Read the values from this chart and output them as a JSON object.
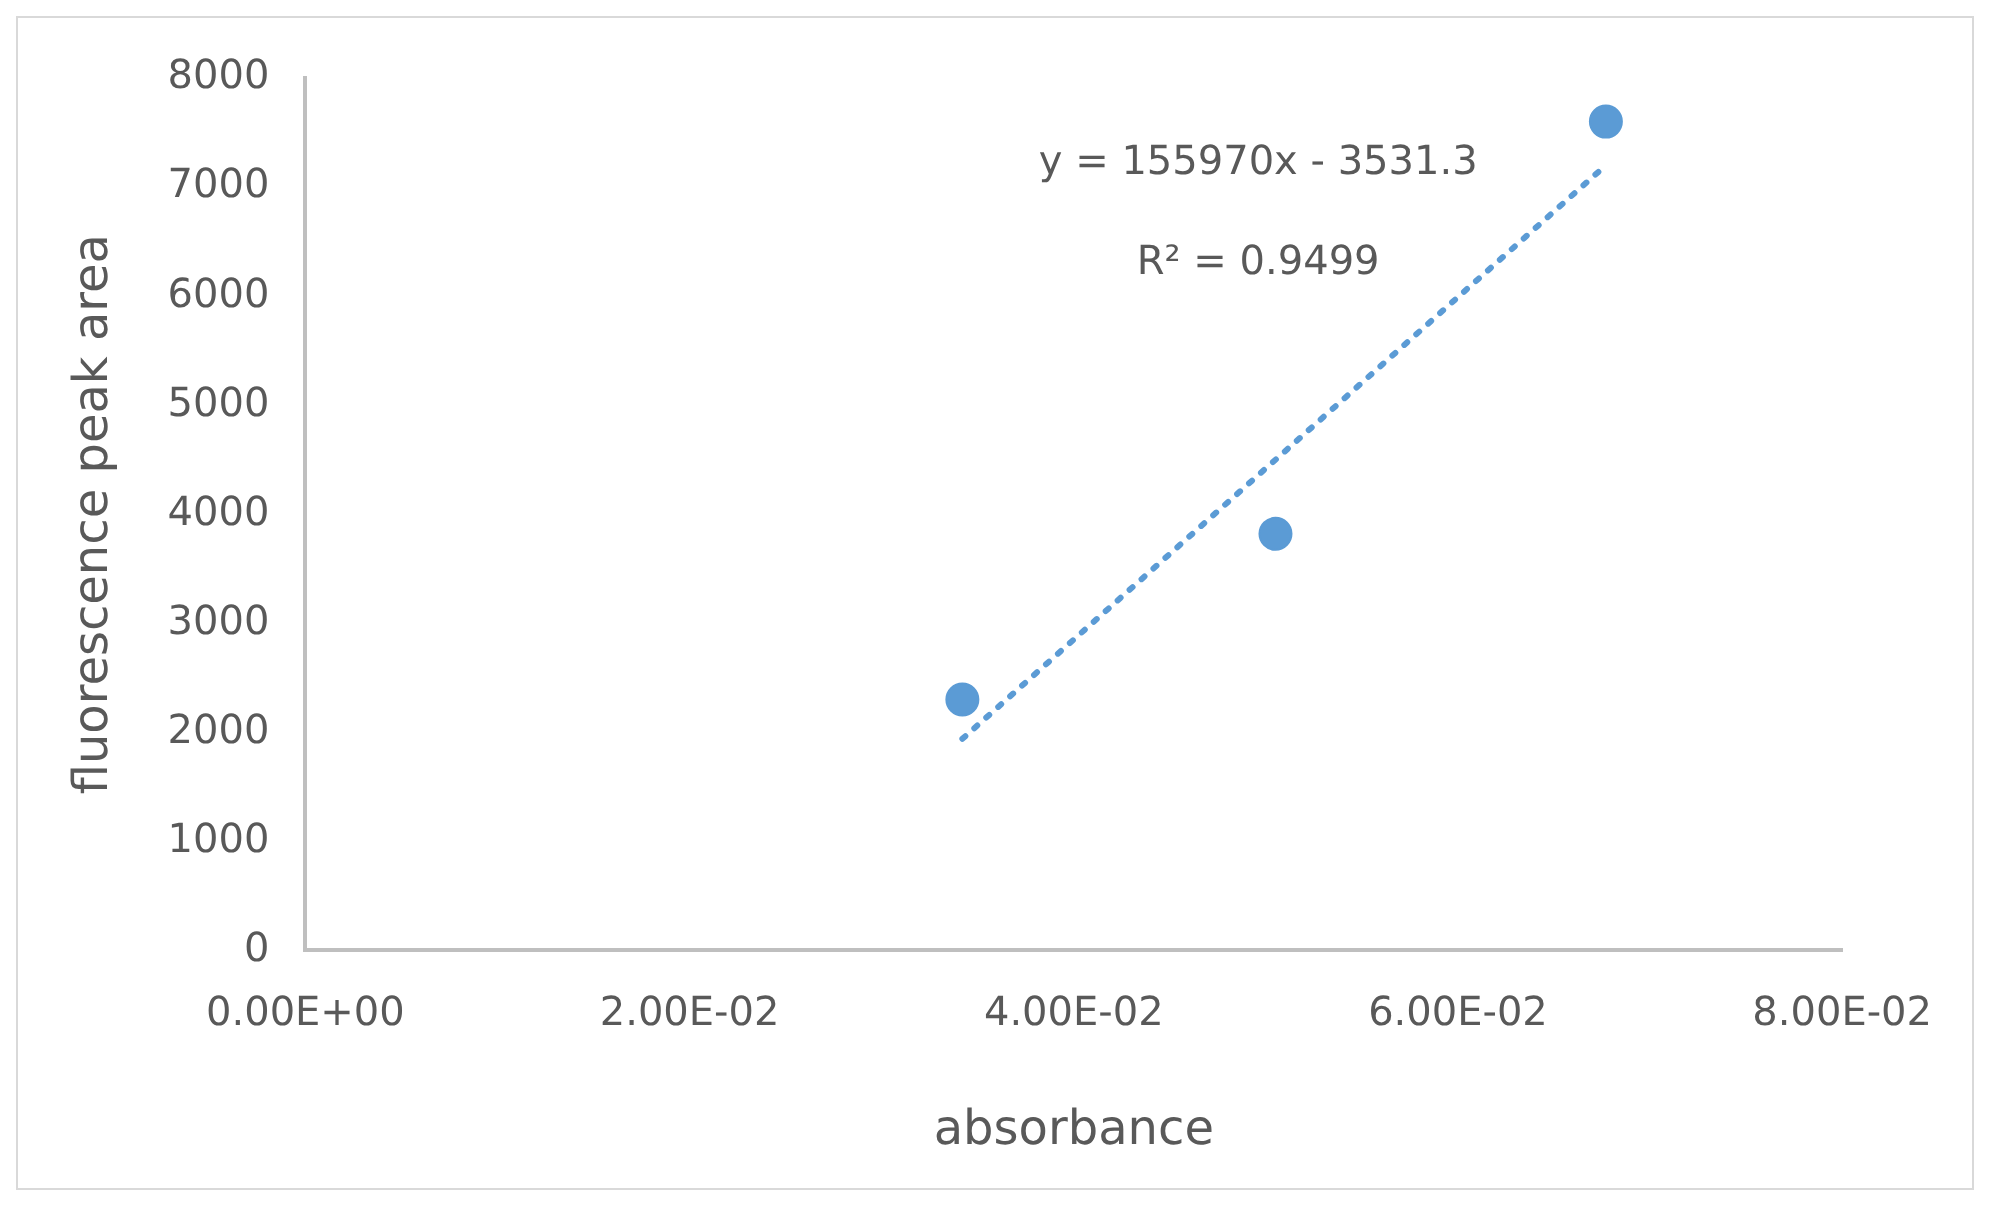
{
  "chart_data": {
    "type": "scatter",
    "xlabel": "absorbance",
    "ylabel": "fluorescence peak area",
    "x": [
      0.0342,
      0.0505,
      0.0677
    ],
    "series": [
      {
        "color": "#5b9bd5",
        "values": [
          2300,
          3820,
          7600
        ],
        "marker": "circle"
      },
      {
        "type": "line",
        "color": "#5b9bd5",
        "x": [
          0.0342,
          0.0677
        ],
        "values": [
          1940,
          7200
        ],
        "line_style": "dotted",
        "marker": "none"
      }
    ],
    "xlim": [
      0,
      0.08
    ],
    "xticks": [
      {
        "value": 0,
        "label": "0.00E+00"
      },
      {
        "value": 0.02,
        "label": "2.00E-02"
      },
      {
        "value": 0.04,
        "label": "4.00E-02"
      },
      {
        "value": 0.06,
        "label": "6.00E-02"
      },
      {
        "value": 0.08,
        "label": "8.00E-02"
      }
    ],
    "ylim": [
      0,
      8000
    ],
    "yticks": [
      0,
      1000,
      2000,
      3000,
      4000,
      5000,
      6000,
      7000,
      8000
    ],
    "grid": false,
    "legend": false,
    "annotations": [
      "y = 155970x - 3531.3",
      "R² = 0.9499"
    ]
  }
}
